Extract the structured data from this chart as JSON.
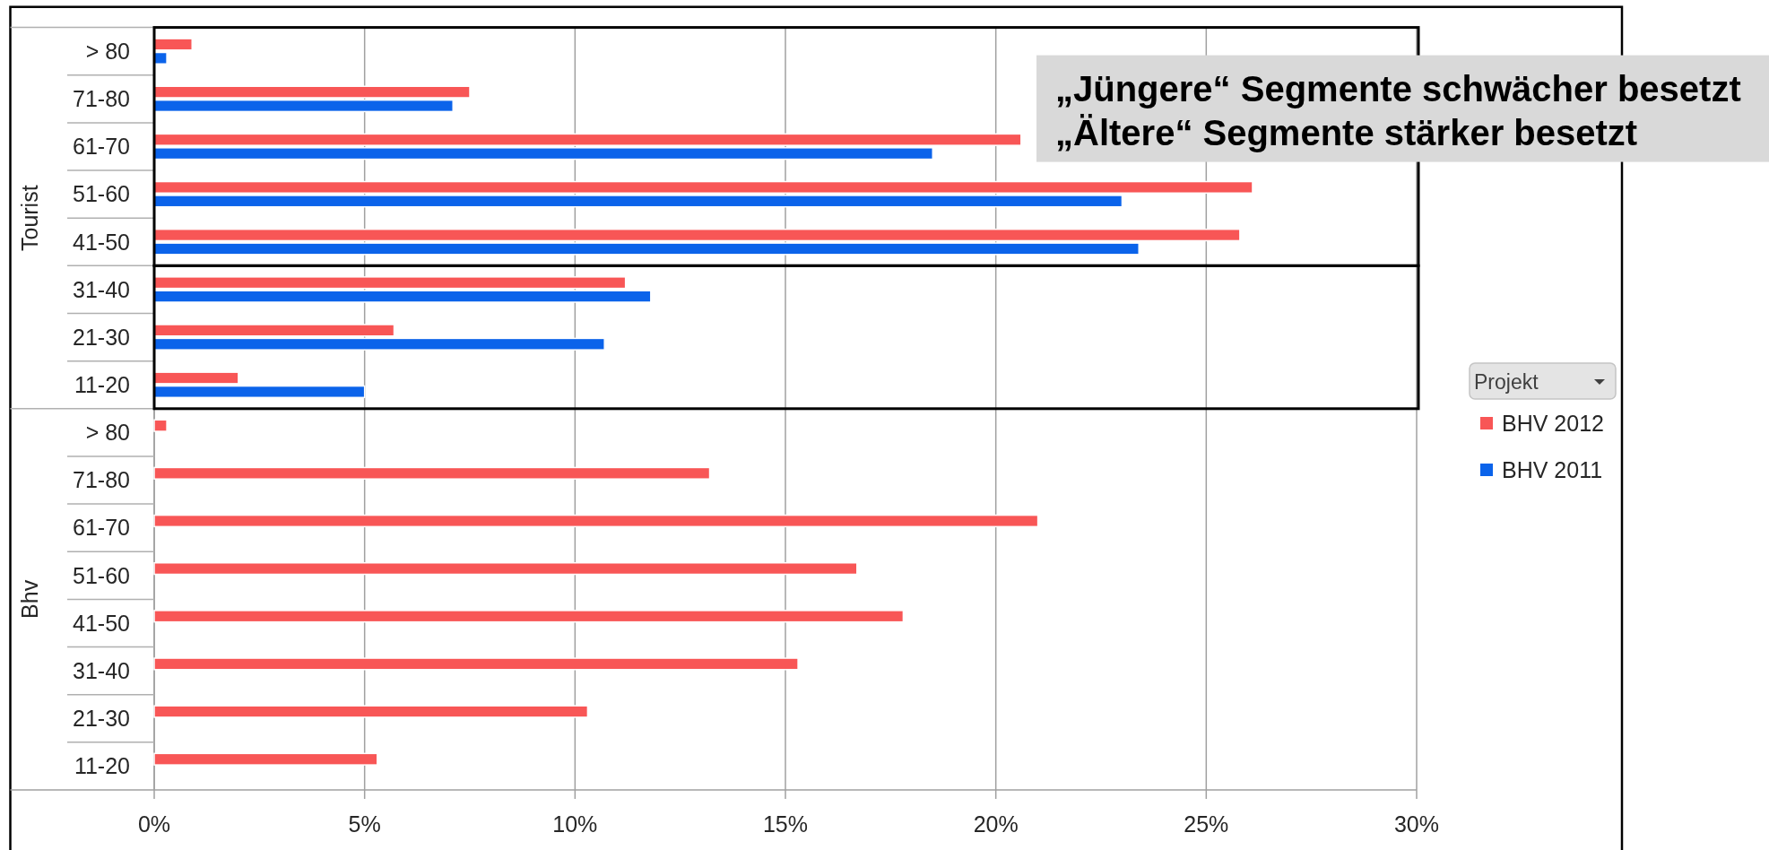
{
  "chart_data": {
    "type": "bar",
    "orientation": "horizontal",
    "categories": [
      "> 80",
      "71-80",
      "61-70",
      "51-60",
      "41-50",
      "31-40",
      "21-30",
      "11-20",
      "> 80",
      "71-80",
      "61-70",
      "51-60",
      "41-50",
      "31-40",
      "21-30",
      "11-20"
    ],
    "series": [
      {
        "name": "BHV 2012",
        "color": "#f85656",
        "values": [
          0.9,
          7.5,
          20.6,
          26.1,
          25.8,
          11.2,
          5.7,
          2.0,
          0.3,
          13.2,
          21.0,
          16.7,
          17.8,
          15.3,
          10.3,
          5.3
        ]
      },
      {
        "name": "BHV 2011",
        "color": "#0b63ea",
        "values": [
          0.3,
          7.1,
          18.5,
          23.0,
          23.4,
          11.8,
          10.7,
          5.0,
          null,
          null,
          null,
          null,
          null,
          null,
          null,
          null
        ]
      }
    ],
    "xlim": [
      0,
      30
    ],
    "xticks": [
      {
        "value": 0,
        "label": "0%"
      },
      {
        "value": 5,
        "label": "5%"
      },
      {
        "value": 10,
        "label": "10%"
      },
      {
        "value": 15,
        "label": "15%"
      },
      {
        "value": 20,
        "label": "20%"
      },
      {
        "value": 25,
        "label": "25%"
      },
      {
        "value": 30,
        "label": "30%"
      }
    ],
    "grid": "x",
    "legend": "right",
    "legend_title": "Projekt",
    "annotations": [
      "„Jüngere“ Segmente schwächer besetzt",
      "„Ältere“ Segmente stärker besetzt",
      "Tourist",
      "Bhv"
    ]
  }
}
